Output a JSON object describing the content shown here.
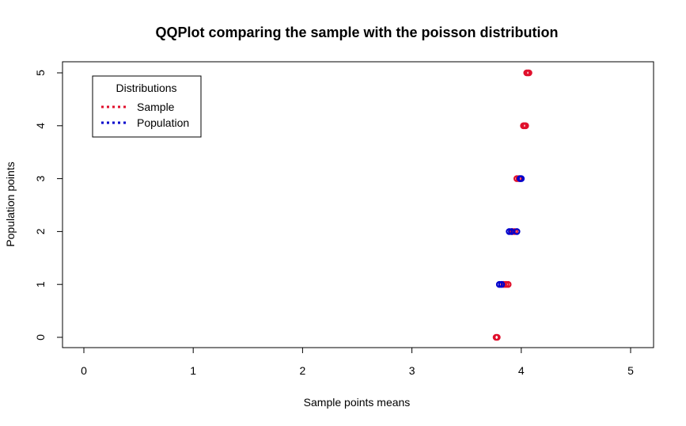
{
  "chart_data": {
    "type": "scatter",
    "title": "QQPlot comparing the sample with the poisson distribution",
    "xlabel": "Sample points means",
    "ylabel": "Population points",
    "xlim": [
      0,
      5
    ],
    "ylim": [
      0,
      5
    ],
    "x_ticks": [
      "0",
      "1",
      "2",
      "3",
      "4",
      "5"
    ],
    "y_ticks": [
      "0",
      "1",
      "2",
      "3",
      "4",
      "5"
    ],
    "grid": false,
    "legend": {
      "title": "Distributions",
      "placement": "top-left",
      "entries": [
        "Sample",
        "Population"
      ]
    },
    "series": [
      {
        "name": "Sample",
        "color": "#e0102c",
        "points": [
          {
            "x": 3.77,
            "y": 0
          },
          {
            "x": 3.78,
            "y": 0
          },
          {
            "x": 3.84,
            "y": 1
          },
          {
            "x": 3.86,
            "y": 1
          },
          {
            "x": 3.88,
            "y": 1
          },
          {
            "x": 3.92,
            "y": 2
          },
          {
            "x": 3.94,
            "y": 2
          },
          {
            "x": 3.96,
            "y": 3
          },
          {
            "x": 3.98,
            "y": 3
          },
          {
            "x": 4.02,
            "y": 4
          },
          {
            "x": 4.03,
            "y": 4
          },
          {
            "x": 4.04,
            "y": 4
          },
          {
            "x": 4.05,
            "y": 5
          },
          {
            "x": 4.06,
            "y": 5
          },
          {
            "x": 4.07,
            "y": 5
          }
        ]
      },
      {
        "name": "Population",
        "color": "#0000cc",
        "points": [
          {
            "x": 3.8,
            "y": 1
          },
          {
            "x": 3.82,
            "y": 1
          },
          {
            "x": 3.89,
            "y": 2
          },
          {
            "x": 3.91,
            "y": 2
          },
          {
            "x": 3.96,
            "y": 2
          },
          {
            "x": 3.99,
            "y": 3
          },
          {
            "x": 4.0,
            "y": 3
          }
        ]
      }
    ]
  }
}
